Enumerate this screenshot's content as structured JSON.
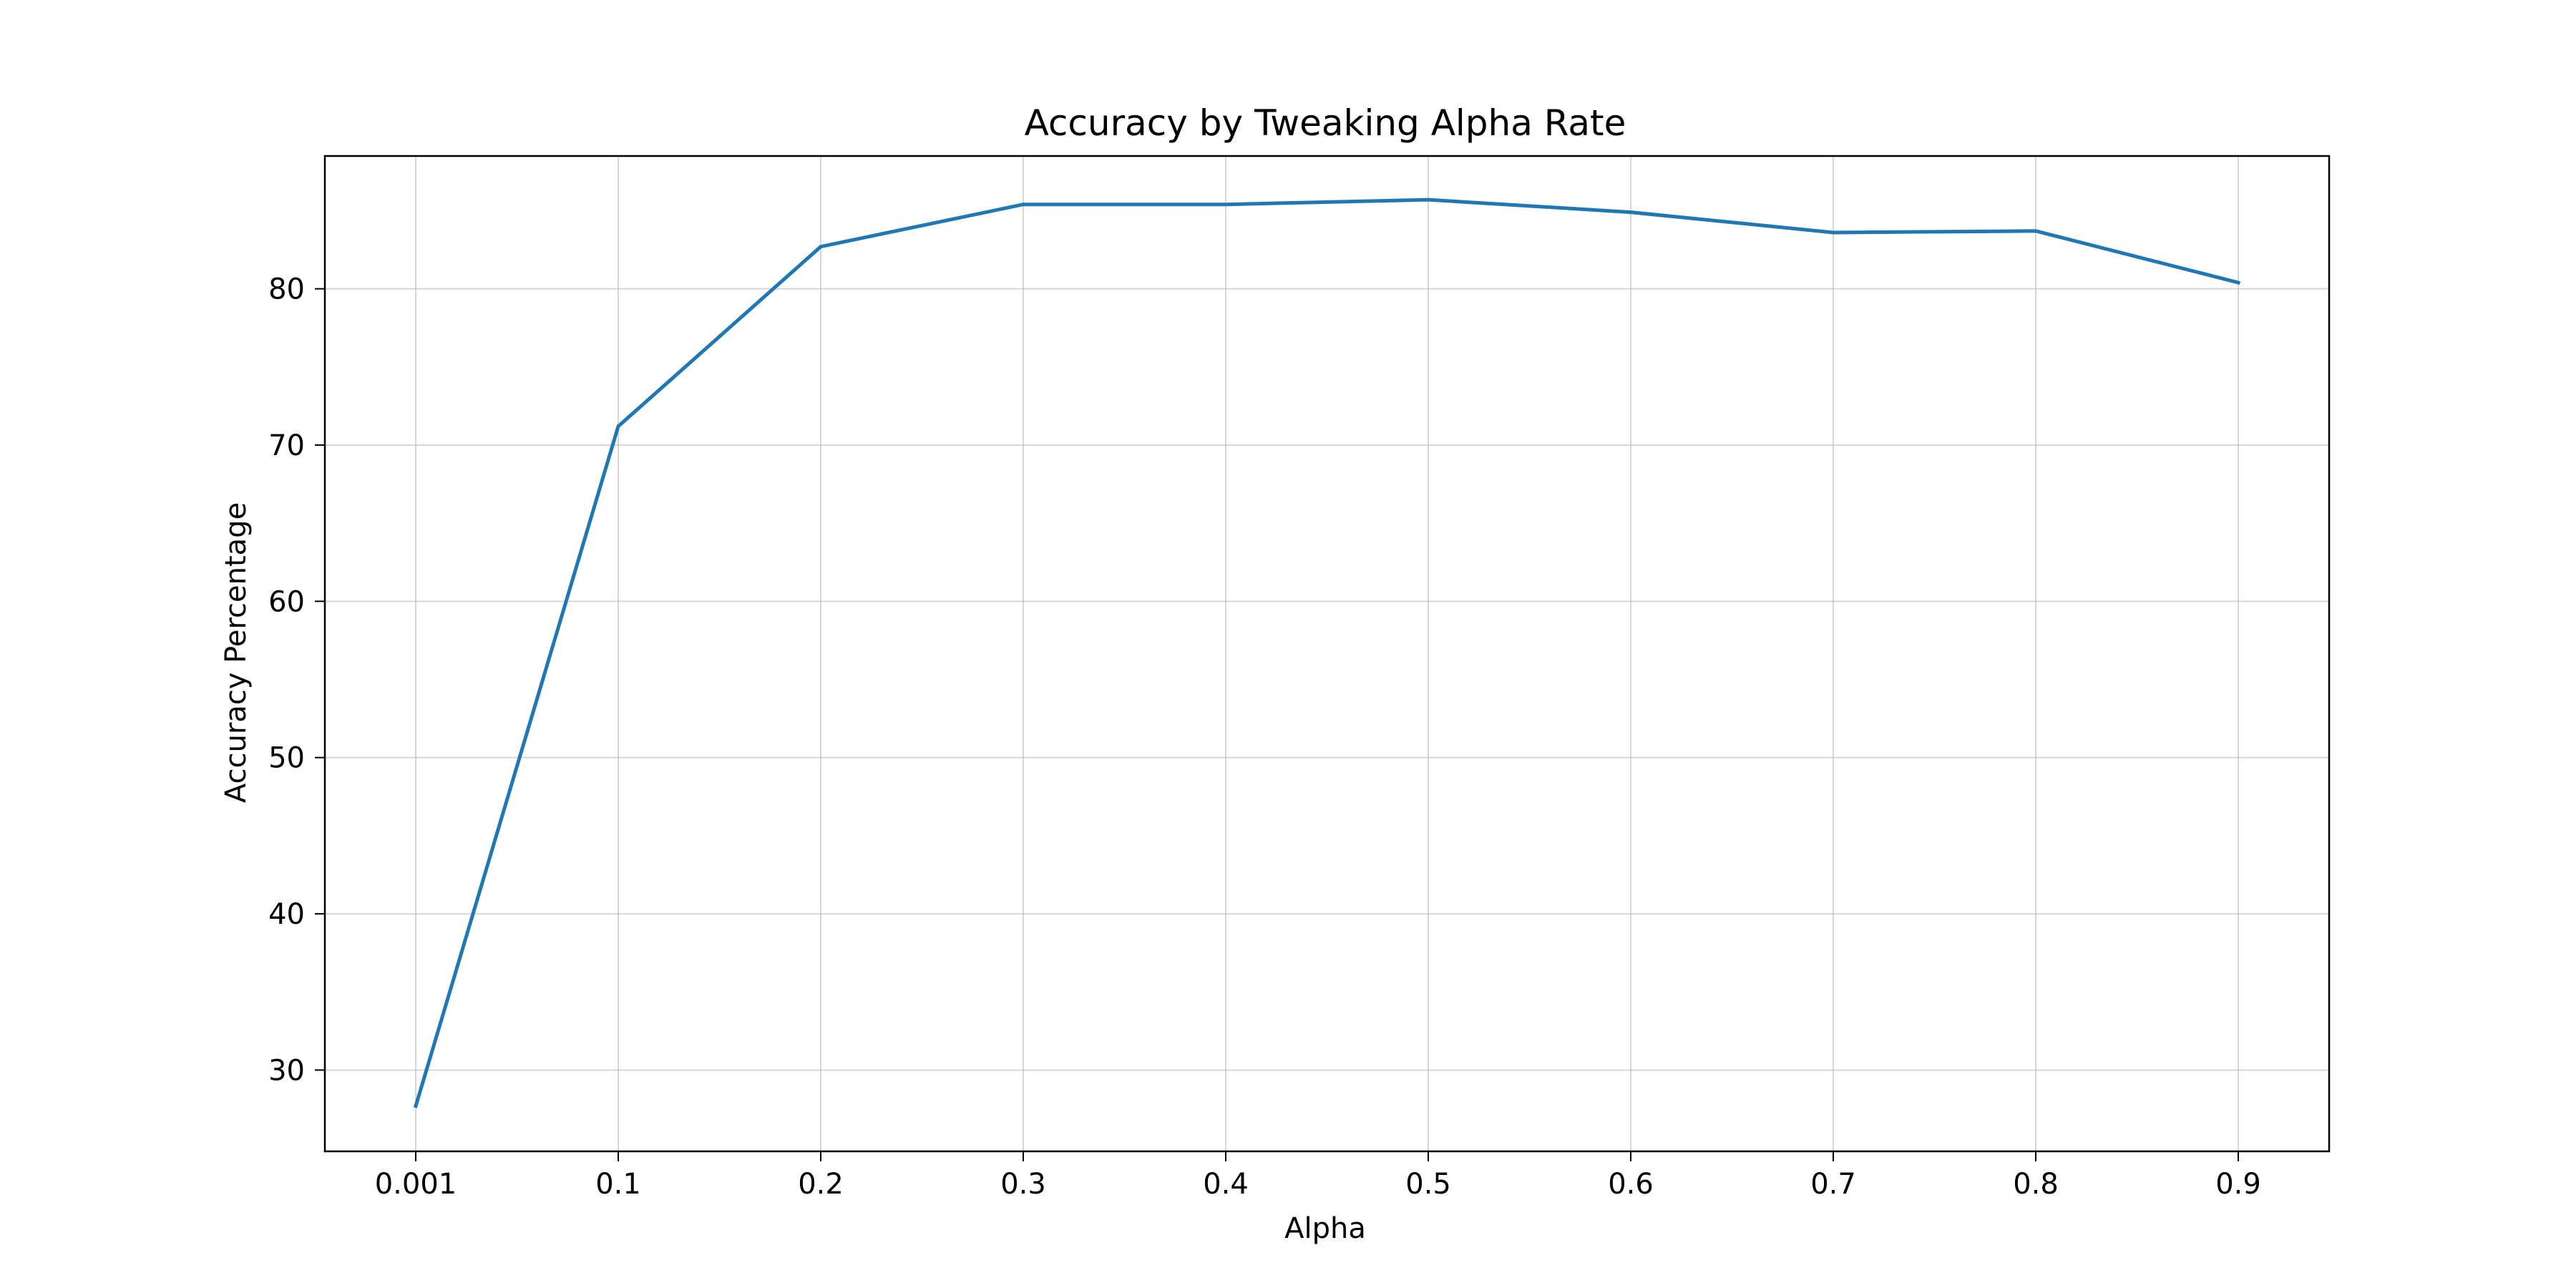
{
  "chart_data": {
    "type": "line",
    "title": "Accuracy by Tweaking Alpha Rate",
    "xlabel": "Alpha",
    "ylabel": "Accuracy Percentage",
    "categories": [
      "0.001",
      "0.1",
      "0.2",
      "0.3",
      "0.4",
      "0.5",
      "0.6",
      "0.7",
      "0.8",
      "0.9"
    ],
    "series": [
      {
        "values": [
          27.7,
          71.2,
          82.7,
          85.4,
          85.4,
          85.7,
          84.9,
          83.6,
          83.7,
          80.4
        ],
        "color": "#1f77b4"
      }
    ],
    "yticks": [
      30,
      40,
      50,
      60,
      70,
      80
    ],
    "ylim": [
      24.8,
      88.5
    ],
    "grid": true,
    "legend": "none"
  }
}
